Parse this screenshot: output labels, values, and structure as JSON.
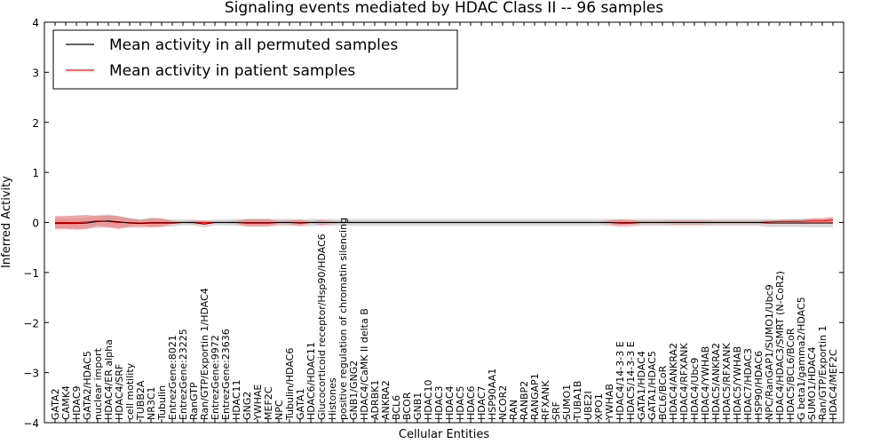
{
  "chart_data": {
    "type": "line",
    "title": "Signaling events mediated by HDAC Class II -- 96 samples",
    "xlabel": "Cellular Entities",
    "ylabel": "Inferred Activity",
    "ylim": [
      -4,
      4
    ],
    "yticks": [
      4,
      3,
      2,
      1,
      0,
      -1,
      -2,
      -3,
      -4
    ],
    "ytick_labels": [
      "4",
      "3",
      "2",
      "1",
      "0",
      "−1",
      "−2",
      "−3",
      "−4"
    ],
    "legend_position": "top-left",
    "colors": {
      "permuted": "#000000",
      "patient": "#ff0000",
      "patient_band": "#f08080",
      "permuted_band": "#c8c8c8"
    },
    "categories": [
      "GATA2",
      "CAMK4",
      "HDAC9",
      "GATA2/HDAC5",
      "nuclear import",
      "HDAC4/ER alpha",
      "HDAC4/SRF",
      "cell motility",
      "TUBB2A",
      "NR3C1",
      "Tubulin",
      "EntrezGene:8021",
      "EntrezGene:23225",
      "RanGTP",
      "Ran/GTP/Exportin 1/HDAC4",
      "EntrezGene:9972",
      "EntrezGene:23636",
      "HDAC11",
      "GNG2",
      "YWHAE",
      "MEF2C",
      "NPC",
      "Tubulin/HDAC6",
      "GATA1",
      "HDAC6/HDAC11",
      "Glucocorticoid receptor/Hsp90/HDAC6",
      "Histones",
      "positive regulation of chromatin silencing",
      "GNB1/GNG2",
      "HDAC4/CaMK II delta B",
      "ADRBK1",
      "ANKRA2",
      "BCL6",
      "BCOR",
      "GNB1",
      "HDAC10",
      "HDAC3",
      "HDAC4",
      "HDAC5",
      "HDAC6",
      "HDAC7",
      "HSP90AA1",
      "NCOR2",
      "RAN",
      "RANBP2",
      "RANGAP1",
      "RFXANK",
      "SRF",
      "SUMO1",
      "TUBA1B",
      "UBE2I",
      "XPO1",
      "YWHAB",
      "HDAC4/14-3-3 E",
      "HDAC5/14-3-3 E",
      "GATA1/HDAC4",
      "GATA1/HDAC5",
      "BCL6/BCoR",
      "HDAC4/ANKRA2",
      "HDAC4/RFXANK",
      "HDAC4/Ubc9",
      "HDAC4/YWHAB",
      "HDAC5/ANKRA2",
      "HDAC5/RFXANK",
      "HDAC5/YWHAB",
      "HDAC7/HDAC3",
      "HSP90/HDAC6",
      "NPC/RanGAP1/SUMO1/Ubc9",
      "HDAC4/HDAC3/SMRT (N-CoR2)",
      "HDAC5/BCL6/BCoR",
      "G beta1/gamma2/HDAC5",
      "SUMO1/HDAC4",
      "Ran/GTP/Exportin 1",
      "HDAC4/MEF2C"
    ],
    "series": [
      {
        "name": "Mean activity in all permuted samples",
        "values": [
          -0.02,
          -0.02,
          -0.02,
          -0.01,
          0.02,
          0.03,
          0.01,
          -0.01,
          -0.02,
          -0.01,
          -0.01,
          -0.01,
          0.0,
          0.0,
          -0.03,
          0.0,
          0.0,
          0.0,
          -0.01,
          -0.01,
          -0.01,
          0.0,
          0.0,
          -0.01,
          0.0,
          0.0,
          0.0,
          0.0,
          0.0,
          0.0,
          0.0,
          0.0,
          0.0,
          0.0,
          0.0,
          0.0,
          0.0,
          0.0,
          0.0,
          0.0,
          0.0,
          0.0,
          0.0,
          0.0,
          0.0,
          0.0,
          0.0,
          0.0,
          0.0,
          0.0,
          0.0,
          0.0,
          0.0,
          -0.01,
          -0.01,
          0.0,
          0.0,
          0.0,
          0.0,
          0.0,
          0.0,
          0.0,
          0.0,
          0.0,
          0.0,
          0.0,
          0.0,
          -0.01,
          -0.01,
          -0.01,
          -0.01,
          -0.01,
          -0.01,
          -0.01
        ],
        "band": [
          0.1,
          0.1,
          0.1,
          0.11,
          0.13,
          0.13,
          0.11,
          0.1,
          0.09,
          0.09,
          0.09,
          0.07,
          0.06,
          0.06,
          0.07,
          0.06,
          0.06,
          0.07,
          0.08,
          0.08,
          0.08,
          0.07,
          0.07,
          0.07,
          0.07,
          0.07,
          0.07,
          0.07,
          0.07,
          0.07,
          0.07,
          0.07,
          0.07,
          0.07,
          0.07,
          0.07,
          0.07,
          0.07,
          0.07,
          0.07,
          0.07,
          0.07,
          0.07,
          0.07,
          0.07,
          0.07,
          0.07,
          0.07,
          0.07,
          0.07,
          0.07,
          0.07,
          0.07,
          0.08,
          0.08,
          0.07,
          0.07,
          0.07,
          0.07,
          0.07,
          0.07,
          0.07,
          0.07,
          0.07,
          0.07,
          0.07,
          0.07,
          0.08,
          0.08,
          0.08,
          0.08,
          0.09,
          0.09,
          0.09
        ]
      },
      {
        "name": "Mean activity in patient samples",
        "values": [
          0.0,
          0.0,
          0.0,
          0.01,
          0.03,
          0.02,
          0.0,
          0.0,
          -0.01,
          0.0,
          0.0,
          0.0,
          0.0,
          0.0,
          0.0,
          0.0,
          0.0,
          0.0,
          0.0,
          0.0,
          0.0,
          0.0,
          0.0,
          0.0,
          0.0,
          0.0,
          0.0,
          0.0,
          0.0,
          0.0,
          0.0,
          0.0,
          0.0,
          0.0,
          0.0,
          0.0,
          0.0,
          0.0,
          0.0,
          0.0,
          0.0,
          0.0,
          0.0,
          0.0,
          0.0,
          0.0,
          0.0,
          0.0,
          0.0,
          0.0,
          0.0,
          0.0,
          0.0,
          0.0,
          0.0,
          0.0,
          0.0,
          0.0,
          0.0,
          0.0,
          0.0,
          0.0,
          0.0,
          0.0,
          0.0,
          0.0,
          0.0,
          0.01,
          0.02,
          0.02,
          0.02,
          0.03,
          0.03,
          0.05
        ],
        "band": [
          0.13,
          0.13,
          0.14,
          0.14,
          0.1,
          0.12,
          0.13,
          0.08,
          0.06,
          0.09,
          0.08,
          0.03,
          0.02,
          0.03,
          0.04,
          0.02,
          0.02,
          0.03,
          0.07,
          0.07,
          0.07,
          0.03,
          0.04,
          0.06,
          0.02,
          0.05,
          0.03,
          0.02,
          0.02,
          0.02,
          0.02,
          0.02,
          0.02,
          0.02,
          0.02,
          0.02,
          0.02,
          0.02,
          0.02,
          0.02,
          0.02,
          0.02,
          0.02,
          0.02,
          0.02,
          0.02,
          0.02,
          0.02,
          0.02,
          0.02,
          0.02,
          0.02,
          0.04,
          0.06,
          0.05,
          0.03,
          0.03,
          0.03,
          0.04,
          0.04,
          0.04,
          0.04,
          0.03,
          0.03,
          0.03,
          0.03,
          0.03,
          0.03,
          0.03,
          0.04,
          0.04,
          0.05,
          0.05,
          0.06
        ]
      }
    ]
  }
}
